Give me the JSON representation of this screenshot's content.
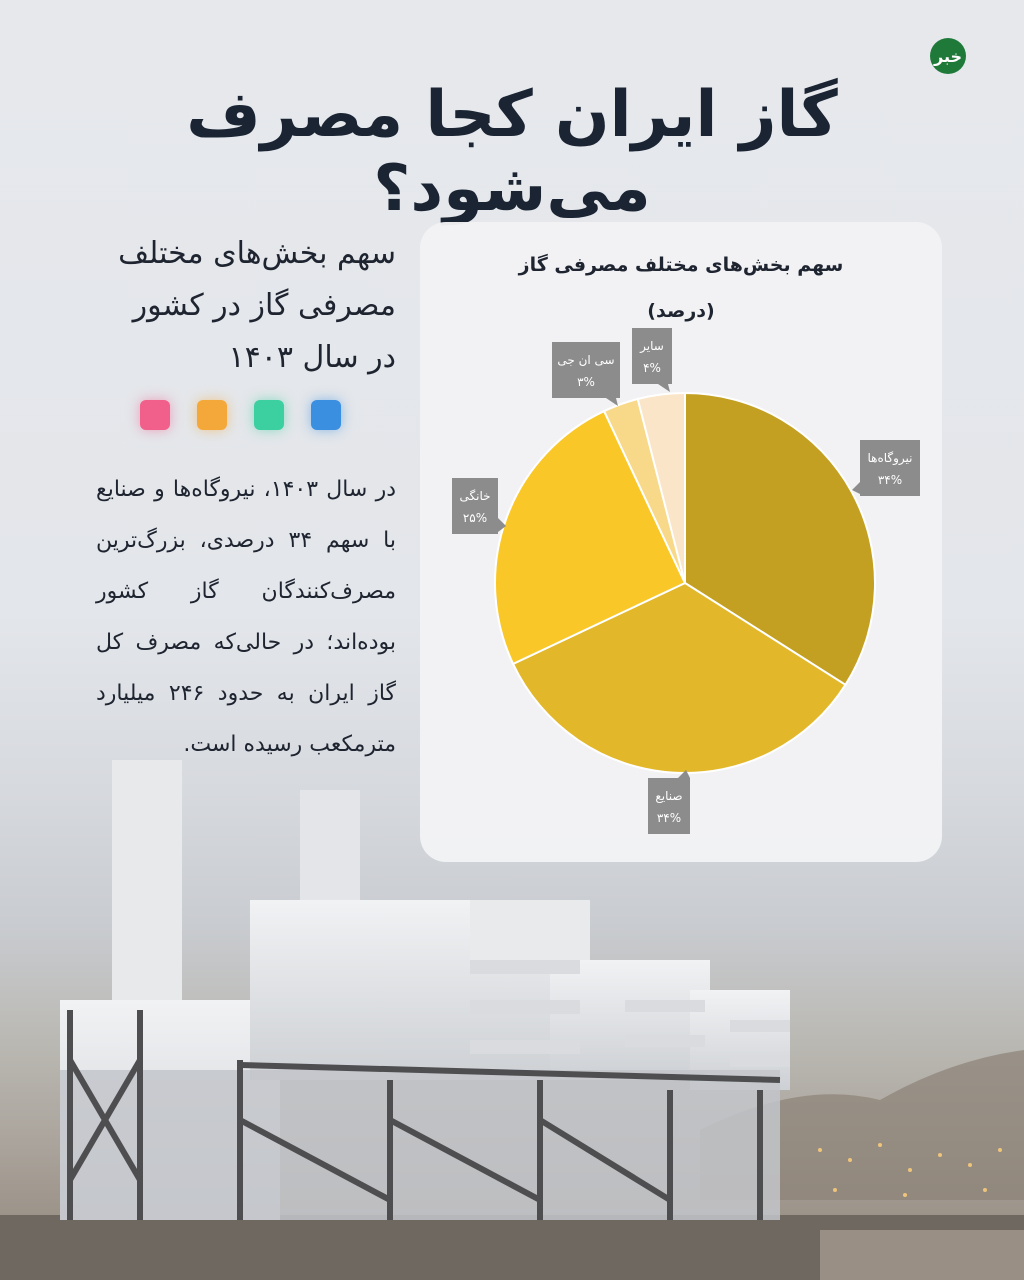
{
  "title": "گاز ایران کجا مصرف می‌شود؟",
  "logo_text": "خبر",
  "subtitle": "سهم بخش‌های مختلف مصرفی گاز در کشور در سال ۱۴۰۳",
  "swatch_colors": [
    "#f0608a",
    "#f5a83a",
    "#3ccfa0",
    "#3a8fe0"
  ],
  "body_text": "در سال ۱۴۰۳، نیروگاه‌ها و صنایع با سهم ۳۴ درصدی، بزرگ‌ترین مصرف‌کنندگان گاز کشور بوده‌اند؛ در حالی‌که مصرف کل گاز ایران به حدود ۲۴۶ میلیارد مترمکعب رسیده است.",
  "chart_data": {
    "type": "pie",
    "title": "سهم بخش‌های مختلف مصرفی گاز",
    "subtitle": "(درصد)",
    "slices": [
      {
        "label": "نیروگاه‌ها",
        "value": 34,
        "value_label": "۳۴%",
        "color": "#c4a022"
      },
      {
        "label": "صنایع",
        "value": 34,
        "value_label": "۳۴%",
        "color": "#e2b72a"
      },
      {
        "label": "خانگی",
        "value": 25,
        "value_label": "۲۵%",
        "color": "#f9c828"
      },
      {
        "label": "سی ان جی",
        "value": 3,
        "value_label": "۳%",
        "color": "#f8d98a"
      },
      {
        "label": "سایر",
        "value": 4,
        "value_label": "۴%",
        "color": "#fae5c8"
      }
    ]
  }
}
